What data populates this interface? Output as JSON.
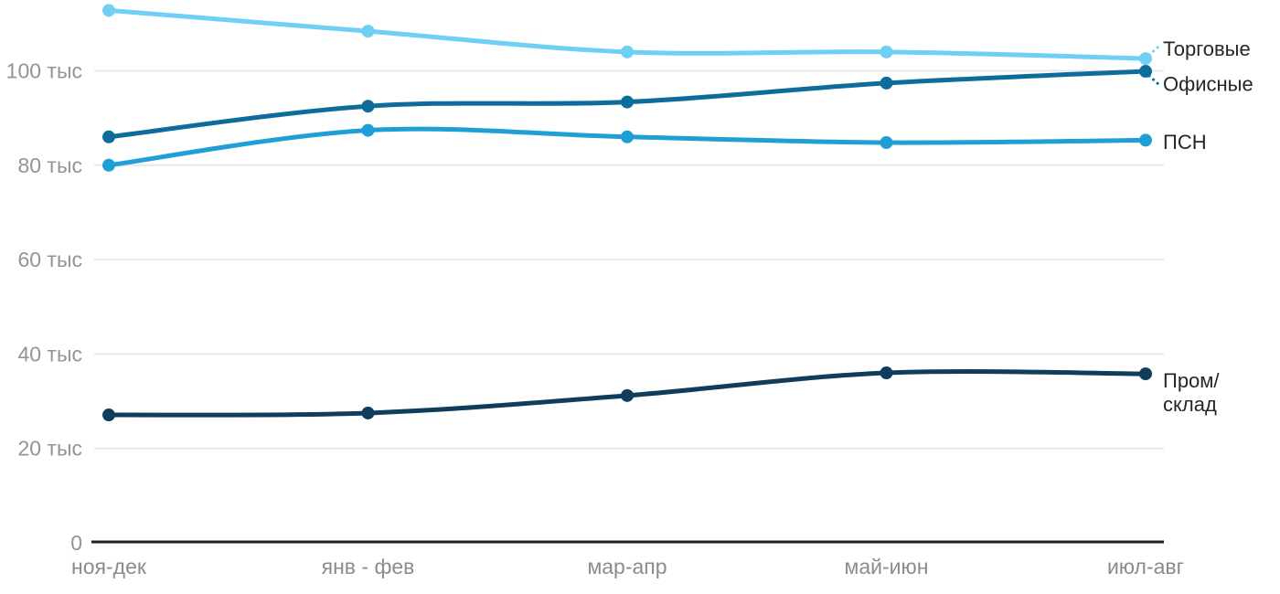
{
  "chart_data": {
    "type": "line",
    "title": "",
    "xlabel": "",
    "ylabel": "",
    "unit_suffix": " тыс",
    "categories": [
      "ноя-дек",
      "янв - фев",
      "мар-апр",
      "май-июн",
      "июл-авг"
    ],
    "series": [
      {
        "key": "retail",
        "name": "Торговые",
        "label_lines": [
          "Торговые"
        ],
        "color": "#6FCFF5",
        "values": [
          112.8,
          108.4,
          104,
          104,
          102.6
        ],
        "leader": "up",
        "label_dy": -11
      },
      {
        "key": "office",
        "name": "Офисные",
        "label_lines": [
          "Офисные"
        ],
        "color": "#0E6C9C",
        "values": [
          86,
          92.5,
          93.4,
          97.4,
          99.9
        ],
        "leader": "down",
        "label_dy": 13.5
      },
      {
        "key": "psn",
        "name": "ПСН",
        "label_lines": [
          "ПСН"
        ],
        "color": "#209ED6",
        "values": [
          80,
          87.4,
          86,
          84.8,
          85.3
        ],
        "leader": null,
        "label_dy": 1.6
      },
      {
        "key": "industrial-warehouse",
        "name": "Пром/склад",
        "label_lines": [
          "Пром/",
          "склад"
        ],
        "color": "#103D5D",
        "values": [
          27.1,
          27.5,
          31.2,
          36,
          35.8
        ],
        "leader": null,
        "label_dy": 7
      }
    ],
    "yticks": [
      {
        "value": 0,
        "label": "0"
      },
      {
        "value": 20,
        "label": "20 тыс"
      },
      {
        "value": 40,
        "label": "40 тыс"
      },
      {
        "value": 60,
        "label": "60 тыс"
      },
      {
        "value": 80,
        "label": "80 тыс"
      },
      {
        "value": 100,
        "label": "100 тыс"
      }
    ],
    "ylim": [
      0,
      115
    ],
    "grid": "horizontal",
    "legend_position": "right-end-labels",
    "colors": {
      "background": "#FFFFFF",
      "grid": "#E9E9E9",
      "axis": "#1F1F1F",
      "tick_label": "#949494",
      "x_label": "#8B8B8B",
      "series_label": "#262626"
    }
  }
}
